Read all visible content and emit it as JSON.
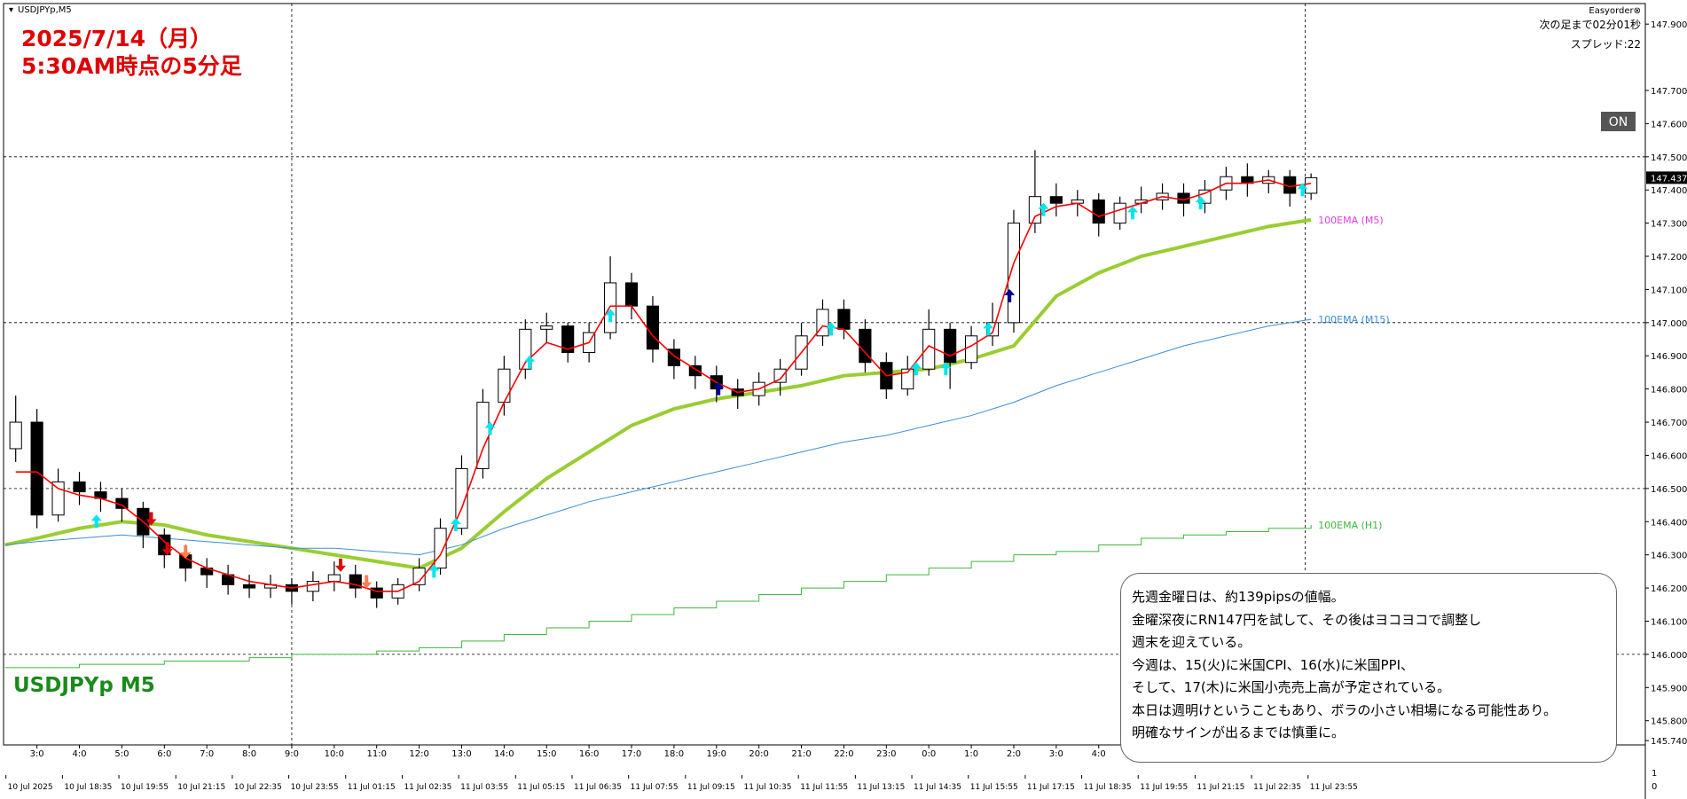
{
  "chart_data": {
    "type": "candlestick",
    "symbol_header": "USDJPYp,M5",
    "title_lines": [
      "2025/7/14（月）",
      "5:30AM時点の5分足"
    ],
    "watermark": "USDJPYp M5",
    "top_right": [
      "Easyorder⊗",
      "次の足まで02分01秒",
      "スプレッド:22"
    ],
    "button": "ON",
    "subwindow_labels": [
      "1",
      "0"
    ],
    "x": [
      2.5,
      3,
      3.5,
      4,
      4.5,
      5,
      5.5,
      6,
      6.5,
      7,
      7.5,
      8,
      8.5,
      9,
      9.5,
      10,
      10.5,
      11,
      11.5,
      12,
      12.5,
      13,
      13.5,
      14,
      14.5,
      15,
      15.5,
      16,
      16.5,
      17,
      17.5,
      18,
      18.5,
      19,
      19.5,
      20,
      20.5,
      21,
      21.5,
      22,
      22.5,
      23,
      23.5,
      24,
      24.5,
      25,
      25.5,
      26,
      26.5,
      27,
      27.5,
      28,
      28.5,
      29,
      29.5,
      30,
      30.5,
      31,
      31.5,
      32,
      32.5,
      33
    ],
    "open": [
      146.62,
      146.7,
      146.42,
      146.52,
      146.49,
      146.47,
      146.44,
      146.36,
      146.3,
      146.26,
      146.24,
      146.21,
      146.2,
      146.21,
      146.19,
      146.22,
      146.24,
      146.2,
      146.17,
      146.21,
      146.26,
      146.38,
      146.56,
      146.76,
      146.86,
      146.98,
      146.99,
      146.91,
      146.97,
      147.12,
      147.05,
      146.92,
      146.87,
      146.84,
      146.8,
      146.78,
      146.82,
      146.86,
      146.96,
      147.04,
      146.98,
      146.88,
      146.8,
      146.86,
      146.98,
      146.88,
      146.96,
      147.0,
      147.3,
      147.38,
      147.36,
      147.37,
      147.3,
      147.36,
      147.37,
      147.39,
      147.36,
      147.4,
      147.44,
      147.42,
      147.44,
      147.39
    ],
    "high": [
      146.78,
      146.74,
      146.56,
      146.55,
      146.52,
      146.5,
      146.46,
      146.38,
      146.33,
      146.29,
      146.27,
      146.24,
      146.24,
      146.23,
      146.25,
      146.28,
      146.27,
      146.22,
      146.23,
      146.29,
      146.41,
      146.6,
      146.8,
      146.9,
      147.01,
      147.03,
      147.0,
      147.0,
      147.2,
      147.15,
      147.08,
      146.95,
      146.9,
      146.87,
      146.83,
      146.85,
      146.89,
      147.0,
      147.07,
      147.07,
      147.01,
      146.91,
      146.9,
      147.04,
      147.0,
      146.99,
      147.06,
      147.34,
      147.52,
      147.42,
      147.4,
      147.39,
      147.38,
      147.41,
      147.42,
      147.42,
      147.43,
      147.47,
      147.48,
      147.46,
      147.46,
      147.45
    ],
    "low": [
      146.58,
      146.38,
      146.4,
      146.45,
      146.43,
      146.4,
      146.32,
      146.26,
      146.22,
      146.2,
      146.18,
      146.17,
      146.17,
      146.15,
      146.16,
      146.19,
      146.17,
      146.14,
      146.15,
      146.19,
      146.24,
      146.36,
      146.53,
      146.72,
      146.83,
      146.94,
      146.88,
      146.88,
      146.95,
      147.01,
      146.88,
      146.83,
      146.8,
      146.76,
      146.74,
      146.75,
      146.78,
      146.84,
      146.93,
      146.95,
      146.85,
      146.77,
      146.78,
      146.84,
      146.8,
      146.86,
      146.93,
      146.97,
      147.27,
      147.32,
      147.32,
      147.26,
      147.28,
      147.33,
      147.34,
      147.32,
      147.33,
      147.37,
      147.38,
      147.39,
      147.35,
      147.37
    ],
    "close": [
      146.7,
      146.42,
      146.52,
      146.49,
      146.47,
      146.44,
      146.36,
      146.3,
      146.26,
      146.24,
      146.21,
      146.2,
      146.21,
      146.19,
      146.22,
      146.24,
      146.2,
      146.17,
      146.21,
      146.26,
      146.38,
      146.56,
      146.76,
      146.86,
      146.98,
      146.99,
      146.91,
      146.97,
      147.12,
      147.05,
      146.92,
      146.87,
      146.84,
      146.8,
      146.78,
      146.82,
      146.86,
      146.96,
      147.04,
      146.98,
      146.88,
      146.8,
      146.86,
      146.98,
      146.88,
      146.96,
      147.0,
      147.3,
      147.38,
      147.36,
      147.37,
      147.3,
      147.36,
      147.37,
      147.39,
      147.36,
      147.4,
      147.44,
      147.42,
      147.44,
      147.39,
      147.437
    ],
    "fast_ma": {
      "color": "#ff0000",
      "values": [
        146.55,
        146.55,
        146.5,
        146.48,
        146.47,
        146.45,
        146.4,
        146.34,
        146.29,
        146.26,
        146.24,
        146.22,
        146.21,
        146.2,
        146.21,
        146.22,
        146.21,
        146.19,
        146.19,
        146.22,
        146.3,
        146.44,
        146.62,
        146.76,
        146.88,
        146.94,
        146.92,
        146.94,
        147.05,
        147.05,
        146.96,
        146.9,
        146.86,
        146.82,
        146.79,
        146.8,
        146.83,
        146.91,
        146.99,
        146.98,
        146.91,
        146.84,
        146.85,
        146.93,
        146.9,
        146.93,
        146.97,
        147.18,
        147.32,
        147.35,
        147.36,
        147.32,
        147.34,
        147.36,
        147.38,
        147.37,
        147.39,
        147.42,
        147.42,
        147.43,
        147.41,
        147.42
      ]
    },
    "ema_x": [
      2.25,
      3,
      4,
      5,
      6,
      7,
      8,
      9,
      10,
      11,
      12,
      13,
      14,
      15,
      16,
      17,
      18,
      19,
      20,
      21,
      22,
      23,
      24,
      25,
      26,
      27,
      28,
      29,
      30,
      31,
      32,
      33
    ],
    "emas": [
      {
        "name": "100EMA (M5)",
        "label_color": "#e23de2",
        "color": "#9acd32",
        "width": 4,
        "step": false,
        "values": [
          146.33,
          146.35,
          146.38,
          146.4,
          146.39,
          146.36,
          146.34,
          146.32,
          146.3,
          146.28,
          146.26,
          146.32,
          146.43,
          146.53,
          146.61,
          146.69,
          146.74,
          146.77,
          146.79,
          146.81,
          146.84,
          146.85,
          146.86,
          146.89,
          146.93,
          147.08,
          147.15,
          147.2,
          147.23,
          147.26,
          147.29,
          147.31
        ]
      },
      {
        "name": "100EMA (M15)",
        "label_color": "#3a8fd8",
        "color": "#3a8fd8",
        "width": 1,
        "step": false,
        "values": [
          146.33,
          146.34,
          146.35,
          146.36,
          146.35,
          146.34,
          146.33,
          146.32,
          146.32,
          146.31,
          146.3,
          146.33,
          146.38,
          146.42,
          146.46,
          146.49,
          146.52,
          146.55,
          146.58,
          146.61,
          146.64,
          146.66,
          146.69,
          146.72,
          146.76,
          146.81,
          146.85,
          146.89,
          146.93,
          146.96,
          146.99,
          147.01
        ]
      },
      {
        "name": "100EMA (H1)",
        "label_color": "#3cb83c",
        "color": "#3cb83c",
        "width": 1,
        "step": true,
        "values": [
          145.96,
          145.96,
          145.97,
          145.97,
          145.98,
          145.98,
          145.99,
          146.0,
          146.0,
          146.01,
          146.02,
          146.04,
          146.06,
          146.08,
          146.1,
          146.12,
          146.14,
          146.16,
          146.18,
          146.2,
          146.22,
          146.24,
          146.26,
          146.28,
          146.3,
          146.31,
          146.33,
          146.35,
          146.36,
          146.37,
          146.38,
          146.39
        ]
      }
    ],
    "signals": [
      {
        "x": 4.4,
        "y": 146.4,
        "dir": "up",
        "color": "#00e5ee"
      },
      {
        "x": 12.35,
        "y": 146.25,
        "dir": "up",
        "color": "#00e5ee"
      },
      {
        "x": 12.86,
        "y": 146.39,
        "dir": "up",
        "color": "#00e5ee"
      },
      {
        "x": 13.67,
        "y": 146.68,
        "dir": "up",
        "color": "#00e5ee"
      },
      {
        "x": 14.6,
        "y": 146.88,
        "dir": "up",
        "color": "#00e5ee"
      },
      {
        "x": 16.5,
        "y": 147.02,
        "dir": "up",
        "color": "#00e5ee"
      },
      {
        "x": 21.7,
        "y": 146.98,
        "dir": "up",
        "color": "#00e5ee"
      },
      {
        "x": 23.7,
        "y": 146.86,
        "dir": "up",
        "color": "#00e5ee"
      },
      {
        "x": 24.4,
        "y": 146.86,
        "dir": "up",
        "color": "#00e5ee"
      },
      {
        "x": 25.4,
        "y": 146.98,
        "dir": "up",
        "color": "#00e5ee"
      },
      {
        "x": 26.7,
        "y": 147.34,
        "dir": "up",
        "color": "#00e5ee"
      },
      {
        "x": 28.8,
        "y": 147.33,
        "dir": "up",
        "color": "#00e5ee"
      },
      {
        "x": 30.4,
        "y": 147.36,
        "dir": "up",
        "color": "#00e5ee"
      },
      {
        "x": 32.8,
        "y": 147.4,
        "dir": "up",
        "color": "#00e5ee"
      },
      {
        "x": 5.69,
        "y": 146.41,
        "dir": "down",
        "color": "#e00000"
      },
      {
        "x": 6.07,
        "y": 146.32,
        "dir": "down",
        "color": "#e00000"
      },
      {
        "x": 10.15,
        "y": 146.27,
        "dir": "down",
        "color": "#e00000"
      },
      {
        "x": 6.5,
        "y": 146.31,
        "dir": "down",
        "color": "#ff7f50"
      },
      {
        "x": 10.76,
        "y": 146.22,
        "dir": "down",
        "color": "#ff7f50"
      },
      {
        "x": 19.05,
        "y": 146.8,
        "dir": "up",
        "color": "#000090"
      },
      {
        "x": 25.9,
        "y": 147.08,
        "dir": "up",
        "color": "#000090"
      }
    ],
    "current_price": {
      "value": 147.437,
      "label": "147.437"
    },
    "xlim": [
      2.214,
      40.87
    ],
    "ylim": [
      145.727,
      147.962
    ],
    "xticks": [
      {
        "value": 3,
        "label": "3:0"
      },
      {
        "value": 4,
        "label": "4:0"
      },
      {
        "value": 5,
        "label": "5:0"
      },
      {
        "value": 6,
        "label": "6:0"
      },
      {
        "value": 7,
        "label": "7:0"
      },
      {
        "value": 8,
        "label": "8:0"
      },
      {
        "value": 9,
        "label": "9:0"
      },
      {
        "value": 10,
        "label": "10:0"
      },
      {
        "value": 11,
        "label": "11:0"
      },
      {
        "value": 12,
        "label": "12:0"
      },
      {
        "value": 13,
        "label": "13:0"
      },
      {
        "value": 14,
        "label": "14:0"
      },
      {
        "value": 15,
        "label": "15:0"
      },
      {
        "value": 16,
        "label": "16:0"
      },
      {
        "value": 17,
        "label": "17:0"
      },
      {
        "value": 18,
        "label": "18:0"
      },
      {
        "value": 19,
        "label": "19:0"
      },
      {
        "value": 20,
        "label": "20:0"
      },
      {
        "value": 21,
        "label": "21:0"
      },
      {
        "value": 22,
        "label": "22:0"
      },
      {
        "value": 23,
        "label": "23:0"
      },
      {
        "value": 24,
        "label": "0:0"
      },
      {
        "value": 25,
        "label": "1:0"
      },
      {
        "value": 26,
        "label": "2:0"
      },
      {
        "value": 27,
        "label": "3:0"
      },
      {
        "value": 28,
        "label": "4:0"
      }
    ],
    "date_ticks": [
      {
        "value": 2.27,
        "label": "10 Jul 2025"
      },
      {
        "value": 3.6,
        "label": "10 Jul 18:35"
      },
      {
        "value": 4.93,
        "label": "10 Jul 19:55"
      },
      {
        "value": 6.27,
        "label": "10 Jul 21:15"
      },
      {
        "value": 7.6,
        "label": "10 Jul 22:35"
      },
      {
        "value": 8.93,
        "label": "10 Jul 23:55"
      },
      {
        "value": 10.27,
        "label": "11 Jul 01:15"
      },
      {
        "value": 11.6,
        "label": "11 Jul 02:35"
      },
      {
        "value": 12.93,
        "label": "11 Jul 03:55"
      },
      {
        "value": 14.27,
        "label": "11 Jul 05:15"
      },
      {
        "value": 15.6,
        "label": "11 Jul 06:35"
      },
      {
        "value": 16.93,
        "label": "11 Jul 07:55"
      },
      {
        "value": 18.27,
        "label": "11 Jul 09:15"
      },
      {
        "value": 19.6,
        "label": "11 Jul 10:35"
      },
      {
        "value": 20.93,
        "label": "11 Jul 11:55"
      },
      {
        "value": 22.27,
        "label": "11 Jul 13:15"
      },
      {
        "value": 23.6,
        "label": "11 Jul 14:35"
      },
      {
        "value": 24.93,
        "label": "11 Jul 15:55"
      },
      {
        "value": 26.27,
        "label": "11 Jul 17:15"
      },
      {
        "value": 27.6,
        "label": "11 Jul 18:35"
      },
      {
        "value": 28.93,
        "label": "11 Jul 19:55"
      },
      {
        "value": 30.27,
        "label": "11 Jul 21:15"
      },
      {
        "value": 31.6,
        "label": "11 Jul 22:35"
      },
      {
        "value": 32.93,
        "label": "11 Jul 23:55"
      }
    ],
    "yticks": [
      {
        "value": 145.74,
        "label": "145.740"
      },
      {
        "value": 145.8,
        "label": "145.800"
      },
      {
        "value": 145.9,
        "label": "145.900"
      },
      {
        "value": 146.0,
        "label": "146.000"
      },
      {
        "value": 146.1,
        "label": "146.100"
      },
      {
        "value": 146.2,
        "label": "146.200"
      },
      {
        "value": 146.3,
        "label": "146.300"
      },
      {
        "value": 146.4,
        "label": "146.400"
      },
      {
        "value": 146.5,
        "label": "146.500"
      },
      {
        "value": 146.6,
        "label": "146.600"
      },
      {
        "value": 146.7,
        "label": "146.700"
      },
      {
        "value": 146.8,
        "label": "146.800"
      },
      {
        "value": 146.9,
        "label": "146.900"
      },
      {
        "value": 147.0,
        "label": "147.000"
      },
      {
        "value": 147.1,
        "label": "147.100"
      },
      {
        "value": 147.2,
        "label": "147.200"
      },
      {
        "value": 147.3,
        "label": "147.300"
      },
      {
        "value": 147.4,
        "label": "147.400"
      },
      {
        "value": 147.5,
        "label": "147.500"
      },
      {
        "value": 147.6,
        "label": "147.600"
      },
      {
        "value": 147.7,
        "label": "147.700"
      },
      {
        "value": 147.9,
        "label": "147.900"
      }
    ],
    "hgrid": [
      146.0,
      146.5,
      147.0,
      147.5
    ],
    "vgrid": [
      9,
      32.86
    ]
  },
  "annotation": {
    "lines": [
      "先週金曜日は、約139pipsの値幅。",
      "金曜深夜にRN147円を試して、その後はヨコヨコで調整し",
      "週末を迎えている。",
      "今週は、15(火)に米国CPI、16(水)に米国PPI、",
      "そして、17(木)に米国小売売上高が予定されている。",
      "本日は週明けということもあり、ボラの小さい相場になる可能性あり。",
      "明確なサインが出るまでは慎重に。"
    ]
  }
}
